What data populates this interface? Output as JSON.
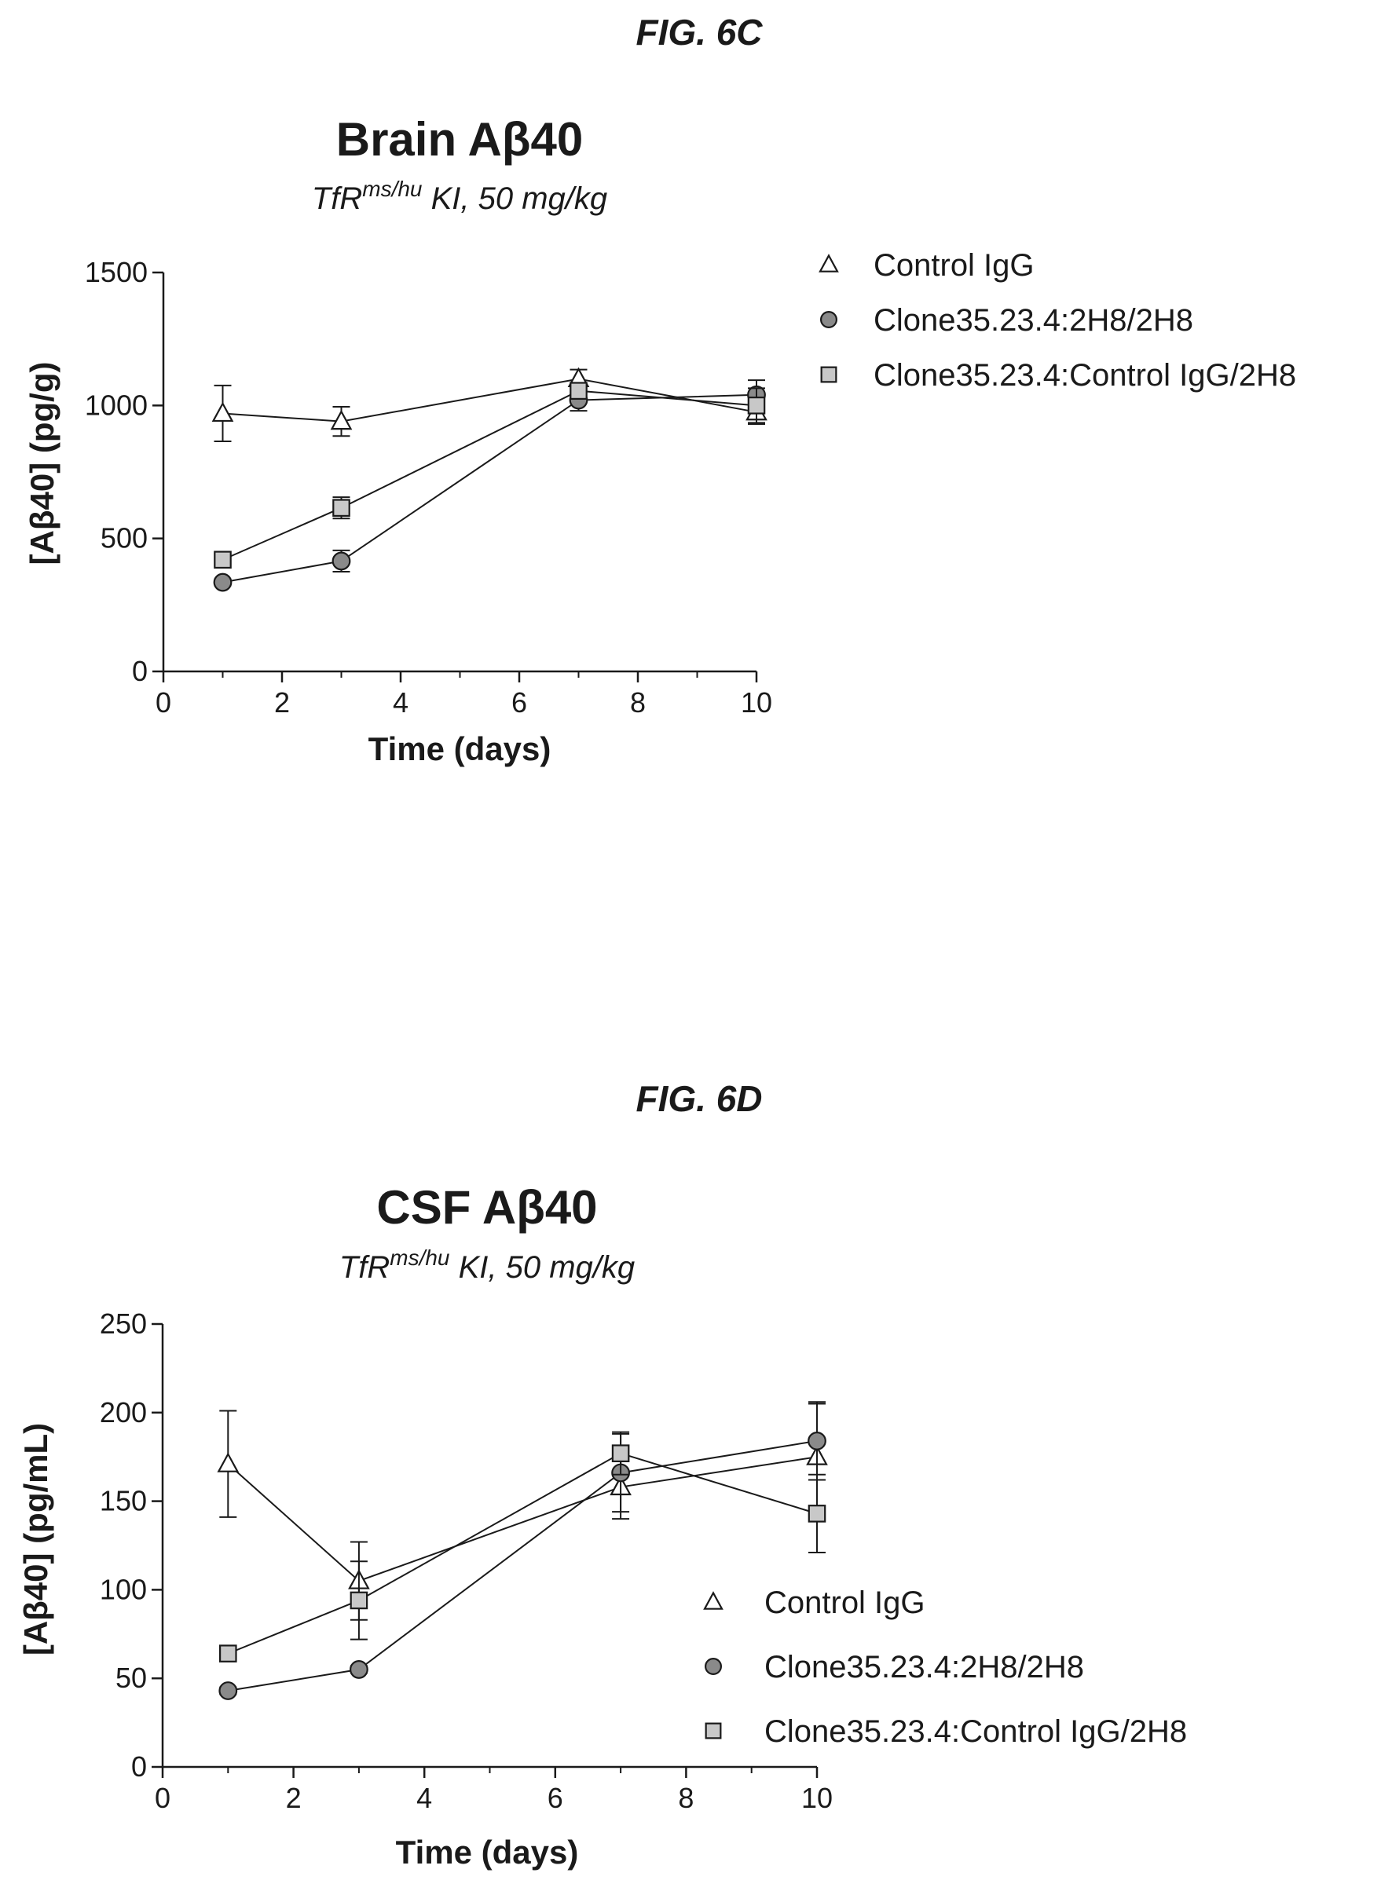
{
  "chart_data": [
    {
      "type": "line",
      "figure_label": "FIG. 6C",
      "title": "Brain Aβ40",
      "subtitle_main": "TfR",
      "subtitle_sup": "ms/hu",
      "subtitle_rest": " KI, 50 mg/kg",
      "xlabel": "Time (days)",
      "ylabel": "[Aβ40] (pg/g)",
      "xlim": [
        0,
        10
      ],
      "ylim": [
        0,
        1500
      ],
      "xticks": [
        0,
        2,
        4,
        6,
        8,
        10
      ],
      "yticks": [
        0,
        500,
        1000,
        1500
      ],
      "x": [
        1,
        3,
        7,
        10
      ],
      "grid": false,
      "legend_position": "right",
      "series": [
        {
          "name": "Control IgG",
          "marker": "triangle",
          "values": [
            970,
            940,
            1100,
            975
          ],
          "err": [
            105,
            55,
            35,
            45
          ]
        },
        {
          "name": "Clone35.23.4:2H8/2H8",
          "marker": "circle",
          "values": [
            335,
            415,
            1020,
            1040
          ],
          "err": [
            12,
            40,
            40,
            55
          ]
        },
        {
          "name": "Clone35.23.4:Control IgG/2H8",
          "marker": "square",
          "values": [
            420,
            615,
            1055,
            1000
          ],
          "err": [
            15,
            40,
            30,
            65
          ]
        }
      ]
    },
    {
      "type": "line",
      "figure_label": "FIG. 6D",
      "title": "CSF Aβ40",
      "subtitle_main": "TfR",
      "subtitle_sup": "ms/hu",
      "subtitle_rest": " KI, 50 mg/kg",
      "xlabel": "Time (days)",
      "ylabel": "[Aβ40] (pg/mL)",
      "xlim": [
        0,
        10
      ],
      "ylim": [
        0,
        250
      ],
      "xticks": [
        0,
        2,
        4,
        6,
        8,
        10
      ],
      "yticks": [
        0,
        50,
        100,
        150,
        200,
        250
      ],
      "x": [
        1,
        3,
        7,
        10
      ],
      "grid": false,
      "legend_position": "lower-right",
      "series": [
        {
          "name": "Control IgG",
          "marker": "triangle",
          "values": [
            171,
            105,
            158,
            175
          ],
          "err": [
            30,
            22,
            18,
            30
          ]
        },
        {
          "name": "Clone35.23.4:2H8/2H8",
          "marker": "circle",
          "values": [
            43,
            55,
            166,
            184
          ],
          "err": [
            2,
            2,
            22,
            22
          ]
        },
        {
          "name": "Clone35.23.4:Control IgG/2H8",
          "marker": "square",
          "values": [
            64,
            94,
            177,
            143
          ],
          "err": [
            3,
            22,
            12,
            22
          ]
        }
      ]
    }
  ],
  "colors": {
    "triangle_fill": "#ffffff",
    "circle_fill": "#8a8a8a",
    "square_fill": "#c8c8c8",
    "stroke": "#1a1a1a"
  }
}
